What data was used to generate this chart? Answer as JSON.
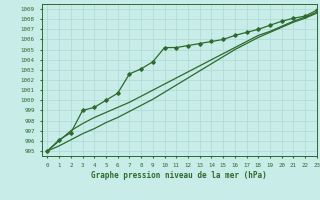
{
  "title": "Graphe pression niveau de la mer (hPa)",
  "xlabel_hours": [
    0,
    1,
    2,
    3,
    4,
    5,
    6,
    7,
    8,
    9,
    10,
    11,
    12,
    13,
    14,
    15,
    16,
    17,
    18,
    19,
    20,
    21,
    22,
    23
  ],
  "xlim": [
    -0.5,
    23
  ],
  "ylim": [
    994.5,
    1009.5
  ],
  "yticks": [
    995,
    996,
    997,
    998,
    999,
    1000,
    1001,
    1002,
    1003,
    1004,
    1005,
    1006,
    1007,
    1008,
    1009
  ],
  "bg_color": "#c8ece8",
  "grid_color": "#b0dcd8",
  "line_color": "#2d6a2d",
  "line1_x": [
    0,
    1,
    2,
    3,
    4,
    5,
    6,
    7,
    8,
    9,
    10,
    11,
    12,
    13,
    14,
    15,
    16,
    17,
    18,
    19,
    20,
    21,
    22,
    23
  ],
  "line1_y": [
    995.0,
    996.0,
    997.0,
    997.7,
    998.3,
    998.8,
    999.3,
    999.8,
    1000.4,
    1001.0,
    1001.6,
    1002.2,
    1002.8,
    1003.4,
    1004.0,
    1004.6,
    1005.2,
    1005.8,
    1006.4,
    1006.8,
    1007.3,
    1007.8,
    1008.2,
    1008.7
  ],
  "line2_x": [
    0,
    1,
    2,
    3,
    4,
    5,
    6,
    7,
    8,
    9,
    10,
    11,
    12,
    13,
    14,
    15,
    16,
    17,
    18,
    19,
    20,
    21,
    22,
    23
  ],
  "line2_y": [
    995.0,
    995.5,
    996.1,
    996.7,
    997.2,
    997.8,
    998.3,
    998.9,
    999.5,
    1000.1,
    1000.8,
    1001.5,
    1002.2,
    1002.9,
    1003.6,
    1004.3,
    1005.0,
    1005.6,
    1006.2,
    1006.7,
    1007.2,
    1007.7,
    1008.1,
    1008.6
  ],
  "line3_x": [
    0,
    1,
    2,
    3,
    4,
    5,
    6,
    7,
    8,
    9,
    10,
    11,
    12,
    13,
    14,
    15,
    16,
    17,
    18,
    19,
    20,
    21,
    22,
    23
  ],
  "line3_y": [
    995.0,
    996.1,
    996.8,
    999.0,
    999.3,
    1000.0,
    1000.7,
    1002.6,
    1003.1,
    1003.8,
    1005.2,
    1005.2,
    1005.4,
    1005.6,
    1005.8,
    1006.0,
    1006.4,
    1006.7,
    1007.0,
    1007.4,
    1007.8,
    1008.1,
    1008.3,
    1008.9
  ]
}
